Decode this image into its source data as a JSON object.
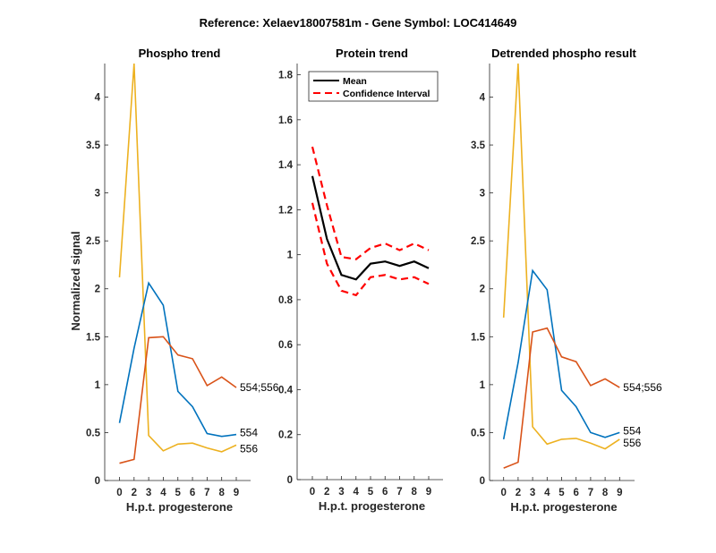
{
  "figure_title": "Reference:  Xelaev18007581m - Gene Symbol:  LOC414649",
  "chart_data": [
    {
      "type": "line",
      "title": "Phospho trend",
      "xlabel": "H.p.t. progesterone",
      "ylabel": "Normalized signal",
      "categories": [
        "0",
        "2",
        "3",
        "4",
        "5",
        "6",
        "7",
        "8",
        "9"
      ],
      "ylim": [
        0,
        4.35
      ],
      "yticks": [
        "0",
        "0.5",
        "1",
        "1.5",
        "2",
        "2.5",
        "3",
        "3.5",
        "4"
      ],
      "ytick_values": [
        0,
        0.5,
        1,
        1.5,
        2,
        2.5,
        3,
        3.5,
        4
      ],
      "grid": false,
      "series": [
        {
          "name": "556",
          "color": "#EDB120",
          "values": [
            2.12,
            4.35,
            0.47,
            0.31,
            0.38,
            0.39,
            0.34,
            0.3,
            0.37
          ],
          "end_label": "556"
        },
        {
          "name": "554",
          "color": "#0072BD",
          "values": [
            0.6,
            1.38,
            2.06,
            1.83,
            0.93,
            0.77,
            0.49,
            0.46,
            0.48
          ],
          "end_label": "554"
        },
        {
          "name": "554;556",
          "color": "#D95319",
          "values": [
            0.18,
            0.22,
            1.49,
            1.5,
            1.31,
            1.27,
            0.99,
            1.08,
            0.97
          ],
          "end_label": "554;556"
        }
      ]
    },
    {
      "type": "line",
      "title": "Protein trend",
      "xlabel": "H.p.t. progesterone",
      "ylabel": "",
      "categories": [
        "0",
        "2",
        "3",
        "4",
        "5",
        "6",
        "7",
        "8",
        "9"
      ],
      "ylim": [
        0,
        1.85
      ],
      "yticks": [
        "0",
        "0.2",
        "0.4",
        "0.6",
        "0.8",
        "1",
        "1.2",
        "1.4",
        "1.6",
        "1.8"
      ],
      "ytick_values": [
        0,
        0.2,
        0.4,
        0.6,
        0.8,
        1,
        1.2,
        1.4,
        1.6,
        1.8
      ],
      "grid": false,
      "legend": {
        "position": "top-left",
        "entries": [
          "Mean",
          "Confidence Interval"
        ]
      },
      "series": [
        {
          "name": "Mean",
          "color": "#000000",
          "style": "solid",
          "values": [
            1.35,
            1.07,
            0.91,
            0.89,
            0.96,
            0.97,
            0.95,
            0.97,
            0.94
          ]
        },
        {
          "name": "Confidence Interval",
          "color": "#FF0000",
          "style": "dashed",
          "values": [
            1.48,
            1.22,
            0.99,
            0.98,
            1.03,
            1.05,
            1.02,
            1.05,
            1.02
          ]
        },
        {
          "name": "Confidence Interval (lower)",
          "color": "#FF0000",
          "style": "dashed",
          "values": [
            1.23,
            0.96,
            0.84,
            0.82,
            0.9,
            0.91,
            0.89,
            0.9,
            0.87
          ]
        }
      ]
    },
    {
      "type": "line",
      "title": "Detrended phospho result",
      "xlabel": "H.p.t. progesterone",
      "ylabel": "",
      "categories": [
        "0",
        "2",
        "3",
        "4",
        "5",
        "6",
        "7",
        "8",
        "9"
      ],
      "ylim": [
        0,
        4.35
      ],
      "yticks": [
        "0",
        "0.5",
        "1",
        "1.5",
        "2",
        "2.5",
        "3",
        "3.5",
        "4"
      ],
      "ytick_values": [
        0,
        0.5,
        1,
        1.5,
        2,
        2.5,
        3,
        3.5,
        4
      ],
      "grid": false,
      "series": [
        {
          "name": "556",
          "color": "#EDB120",
          "values": [
            1.7,
            4.35,
            0.56,
            0.38,
            0.43,
            0.44,
            0.39,
            0.33,
            0.43
          ],
          "end_label": "556"
        },
        {
          "name": "554",
          "color": "#0072BD",
          "values": [
            0.43,
            1.23,
            2.19,
            1.99,
            0.94,
            0.77,
            0.5,
            0.45,
            0.5
          ],
          "end_label": "554"
        },
        {
          "name": "554;556",
          "color": "#D95319",
          "values": [
            0.13,
            0.19,
            1.55,
            1.59,
            1.29,
            1.24,
            0.99,
            1.06,
            0.97
          ],
          "end_label": "554;556"
        }
      ]
    }
  ]
}
